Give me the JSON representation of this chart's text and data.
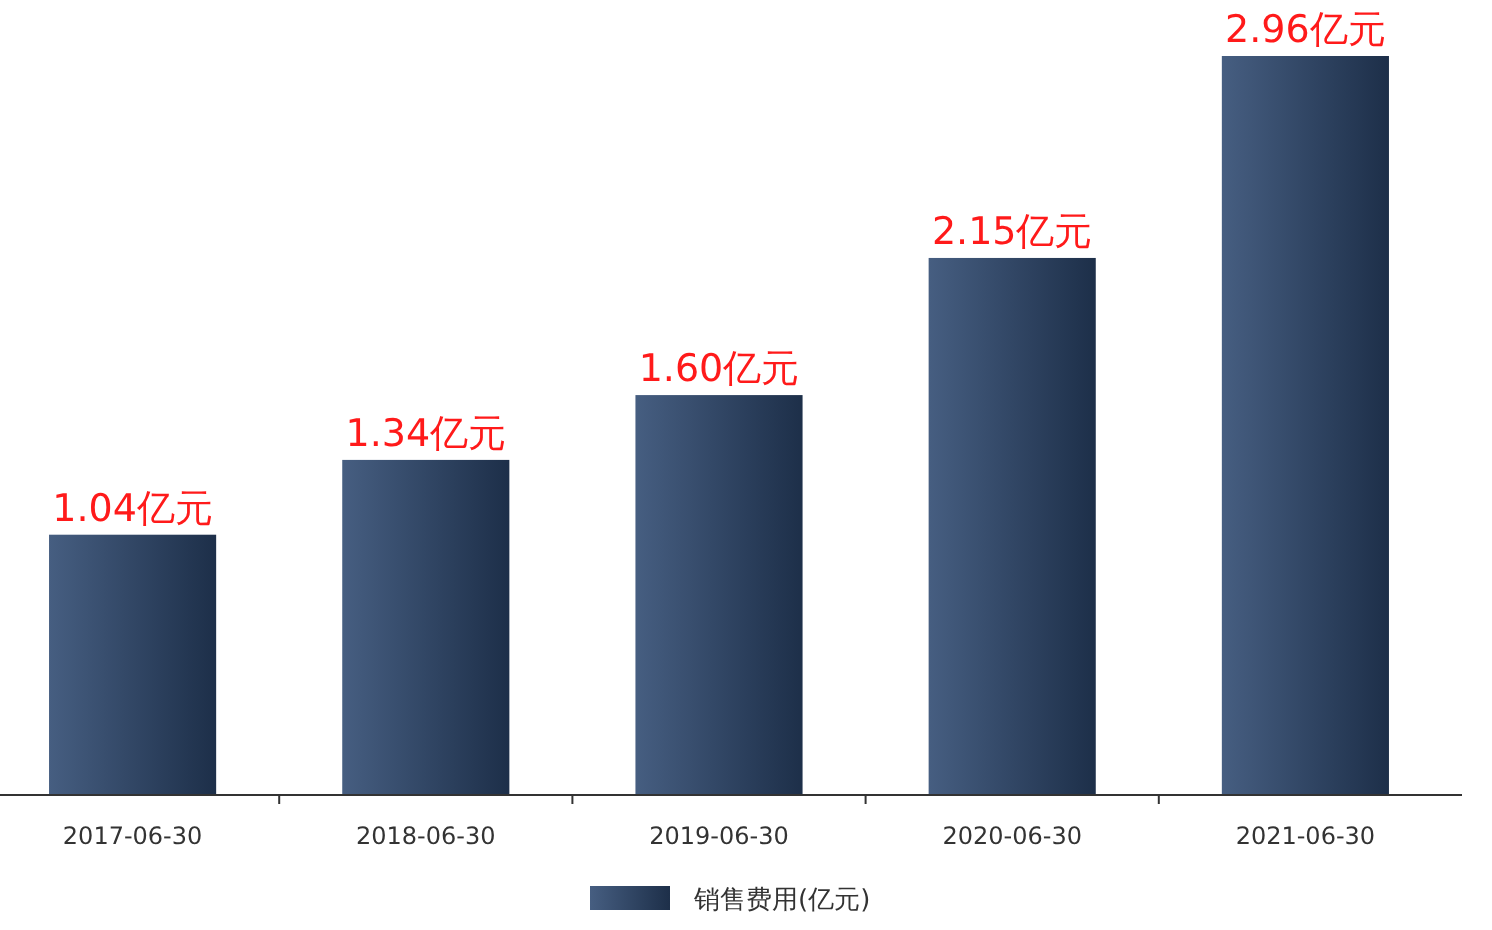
{
  "chart_data": {
    "type": "bar",
    "categories": [
      "2017-06-30",
      "2018-06-30",
      "2019-06-30",
      "2020-06-30",
      "2021-06-30"
    ],
    "series": [
      {
        "name": "销售费用(亿元)",
        "color": "#2d4870",
        "values": [
          1.04,
          1.34,
          1.6,
          2.15,
          2.96
        ],
        "value_labels": [
          "1.04亿元",
          "1.34亿元",
          "1.60亿元",
          "2.15亿元",
          "2.96亿元"
        ]
      }
    ],
    "legend": "bottom"
  }
}
